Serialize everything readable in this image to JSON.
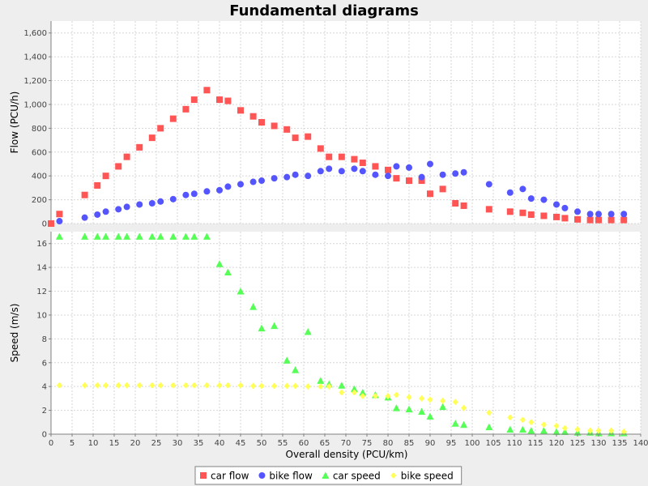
{
  "chart_data": {
    "type": "scatter",
    "title": "Fundamental diagrams",
    "xlabel": "Overall density (PCU/km)",
    "xlim": [
      0,
      140
    ],
    "x_ticks": [
      0,
      5,
      10,
      15,
      20,
      25,
      30,
      35,
      40,
      45,
      50,
      55,
      60,
      65,
      70,
      75,
      80,
      85,
      90,
      95,
      100,
      105,
      110,
      115,
      120,
      125,
      130,
      135,
      140
    ],
    "grid": true,
    "legend_position": "bottom",
    "panels": [
      {
        "ylabel": "Flow (PCU/h)",
        "ylim": [
          0,
          1700
        ],
        "y_ticks": [
          0,
          200,
          400,
          600,
          800,
          1000,
          1200,
          1400,
          1600
        ],
        "y_tick_labels": [
          "0",
          "200",
          "400",
          "600",
          "800",
          "1,000",
          "1,200",
          "1,400",
          "1,600"
        ],
        "series": [
          {
            "name": "car flow",
            "color": "#ff5555",
            "marker": "square",
            "points": [
              [
                0,
                0
              ],
              [
                2,
                80
              ],
              [
                8,
                240
              ],
              [
                11,
                320
              ],
              [
                13,
                400
              ],
              [
                16,
                480
              ],
              [
                18,
                560
              ],
              [
                21,
                640
              ],
              [
                24,
                720
              ],
              [
                26,
                800
              ],
              [
                29,
                880
              ],
              [
                32,
                960
              ],
              [
                34,
                1040
              ],
              [
                37,
                1120
              ],
              [
                40,
                1040
              ],
              [
                42,
                1030
              ],
              [
                45,
                950
              ],
              [
                48,
                900
              ],
              [
                50,
                850
              ],
              [
                53,
                820
              ],
              [
                56,
                790
              ],
              [
                58,
                720
              ],
              [
                61,
                730
              ],
              [
                64,
                630
              ],
              [
                66,
                560
              ],
              [
                69,
                560
              ],
              [
                72,
                540
              ],
              [
                74,
                510
              ],
              [
                77,
                480
              ],
              [
                80,
                450
              ],
              [
                82,
                380
              ],
              [
                85,
                360
              ],
              [
                88,
                360
              ],
              [
                90,
                250
              ],
              [
                93,
                290
              ],
              [
                96,
                170
              ],
              [
                98,
                150
              ],
              [
                104,
                120
              ],
              [
                109,
                100
              ],
              [
                112,
                90
              ],
              [
                114,
                75
              ],
              [
                117,
                65
              ],
              [
                120,
                55
              ],
              [
                122,
                45
              ],
              [
                125,
                35
              ],
              [
                128,
                30
              ],
              [
                130,
                30
              ],
              [
                133,
                30
              ],
              [
                136,
                30
              ]
            ]
          },
          {
            "name": "bike flow",
            "color": "#5555ff",
            "marker": "circle",
            "points": [
              [
                2,
                20
              ],
              [
                8,
                50
              ],
              [
                11,
                75
              ],
              [
                13,
                100
              ],
              [
                16,
                120
              ],
              [
                18,
                140
              ],
              [
                21,
                160
              ],
              [
                24,
                170
              ],
              [
                26,
                185
              ],
              [
                29,
                205
              ],
              [
                32,
                240
              ],
              [
                34,
                250
              ],
              [
                37,
                270
              ],
              [
                40,
                280
              ],
              [
                42,
                310
              ],
              [
                45,
                330
              ],
              [
                48,
                350
              ],
              [
                50,
                360
              ],
              [
                53,
                380
              ],
              [
                56,
                390
              ],
              [
                58,
                410
              ],
              [
                61,
                400
              ],
              [
                64,
                440
              ],
              [
                66,
                460
              ],
              [
                69,
                440
              ],
              [
                72,
                460
              ],
              [
                74,
                440
              ],
              [
                77,
                410
              ],
              [
                80,
                400
              ],
              [
                82,
                480
              ],
              [
                85,
                470
              ],
              [
                88,
                390
              ],
              [
                90,
                500
              ],
              [
                93,
                410
              ],
              [
                96,
                420
              ],
              [
                98,
                430
              ],
              [
                104,
                330
              ],
              [
                109,
                260
              ],
              [
                112,
                290
              ],
              [
                114,
                210
              ],
              [
                117,
                200
              ],
              [
                120,
                160
              ],
              [
                122,
                130
              ],
              [
                125,
                100
              ],
              [
                128,
                80
              ],
              [
                130,
                80
              ],
              [
                133,
                80
              ],
              [
                136,
                80
              ]
            ]
          }
        ]
      },
      {
        "ylabel": "Speed (m/s)",
        "ylim": [
          0,
          17
        ],
        "y_ticks": [
          0,
          2,
          4,
          6,
          8,
          10,
          12,
          14,
          16
        ],
        "y_tick_labels": [
          "0",
          "2",
          "4",
          "6",
          "8",
          "10",
          "12",
          "14",
          "16"
        ],
        "series": [
          {
            "name": "car speed",
            "color": "#55ff55",
            "marker": "triangle",
            "points": [
              [
                2,
                16.6
              ],
              [
                8,
                16.6
              ],
              [
                11,
                16.6
              ],
              [
                13,
                16.6
              ],
              [
                16,
                16.6
              ],
              [
                18,
                16.6
              ],
              [
                21,
                16.6
              ],
              [
                24,
                16.6
              ],
              [
                26,
                16.6
              ],
              [
                29,
                16.6
              ],
              [
                32,
                16.6
              ],
              [
                34,
                16.6
              ],
              [
                37,
                16.6
              ],
              [
                40,
                14.3
              ],
              [
                42,
                13.6
              ],
              [
                45,
                12.0
              ],
              [
                48,
                10.7
              ],
              [
                50,
                8.9
              ],
              [
                53,
                9.1
              ],
              [
                56,
                6.2
              ],
              [
                58,
                5.4
              ],
              [
                61,
                8.6
              ],
              [
                64,
                4.5
              ],
              [
                66,
                4.2
              ],
              [
                69,
                4.1
              ],
              [
                72,
                3.8
              ],
              [
                74,
                3.5
              ],
              [
                77,
                3.3
              ],
              [
                80,
                3.1
              ],
              [
                82,
                2.2
              ],
              [
                85,
                2.1
              ],
              [
                88,
                1.9
              ],
              [
                90,
                1.5
              ],
              [
                93,
                2.3
              ],
              [
                96,
                0.9
              ],
              [
                98,
                0.8
              ],
              [
                104,
                0.6
              ],
              [
                109,
                0.4
              ],
              [
                112,
                0.4
              ],
              [
                114,
                0.3
              ],
              [
                117,
                0.3
              ],
              [
                120,
                0.2
              ],
              [
                122,
                0.2
              ],
              [
                125,
                0.15
              ],
              [
                128,
                0.15
              ],
              [
                130,
                0.1
              ],
              [
                133,
                0.1
              ],
              [
                136,
                0.1
              ]
            ]
          },
          {
            "name": "bike speed",
            "color": "#ffff55",
            "marker": "diamond",
            "points": [
              [
                2,
                4.1
              ],
              [
                8,
                4.1
              ],
              [
                11,
                4.1
              ],
              [
                13,
                4.1
              ],
              [
                16,
                4.1
              ],
              [
                18,
                4.1
              ],
              [
                21,
                4.1
              ],
              [
                24,
                4.1
              ],
              [
                26,
                4.1
              ],
              [
                29,
                4.1
              ],
              [
                32,
                4.1
              ],
              [
                34,
                4.1
              ],
              [
                37,
                4.1
              ],
              [
                40,
                4.1
              ],
              [
                42,
                4.1
              ],
              [
                45,
                4.1
              ],
              [
                48,
                4.05
              ],
              [
                50,
                4.05
              ],
              [
                53,
                4.05
              ],
              [
                56,
                4.05
              ],
              [
                58,
                4.05
              ],
              [
                61,
                4.0
              ],
              [
                64,
                4.0
              ],
              [
                66,
                4.0
              ],
              [
                69,
                3.5
              ],
              [
                72,
                3.5
              ],
              [
                74,
                3.2
              ],
              [
                77,
                3.2
              ],
              [
                80,
                3.2
              ],
              [
                82,
                3.3
              ],
              [
                85,
                3.1
              ],
              [
                88,
                3.0
              ],
              [
                90,
                2.9
              ],
              [
                93,
                2.8
              ],
              [
                96,
                2.7
              ],
              [
                98,
                2.2
              ],
              [
                104,
                1.8
              ],
              [
                109,
                1.4
              ],
              [
                112,
                1.2
              ],
              [
                114,
                1.0
              ],
              [
                117,
                0.8
              ],
              [
                120,
                0.7
              ],
              [
                122,
                0.5
              ],
              [
                125,
                0.4
              ],
              [
                128,
                0.3
              ],
              [
                130,
                0.3
              ],
              [
                133,
                0.3
              ],
              [
                136,
                0.2
              ]
            ]
          }
        ]
      }
    ]
  }
}
